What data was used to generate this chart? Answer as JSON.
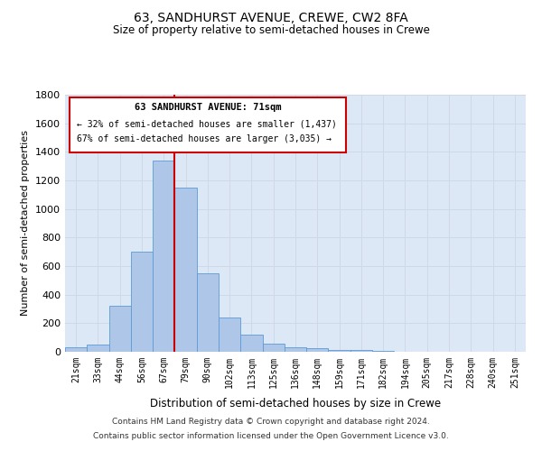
{
  "title": "63, SANDHURST AVENUE, CREWE, CW2 8FA",
  "subtitle": "Size of property relative to semi-detached houses in Crewe",
  "xlabel": "Distribution of semi-detached houses by size in Crewe",
  "ylabel": "Number of semi-detached properties",
  "categories": [
    "21sqm",
    "33sqm",
    "44sqm",
    "56sqm",
    "67sqm",
    "79sqm",
    "90sqm",
    "102sqm",
    "113sqm",
    "125sqm",
    "136sqm",
    "148sqm",
    "159sqm",
    "171sqm",
    "182sqm",
    "194sqm",
    "205sqm",
    "217sqm",
    "228sqm",
    "240sqm",
    "251sqm"
  ],
  "values": [
    30,
    50,
    320,
    700,
    1340,
    1150,
    550,
    240,
    120,
    60,
    30,
    25,
    15,
    10,
    5,
    3,
    2,
    1,
    1,
    0,
    0
  ],
  "bar_color": "#aec6e8",
  "bar_edge_color": "#5b9bd5",
  "grid_color": "#d0d8e8",
  "background_color": "#dce8f5",
  "annotation_box_color": "#ffffff",
  "annotation_border_color": "#cc0000",
  "property_line_color": "#cc0000",
  "property_bin_index": 4,
  "annotation_title": "63 SANDHURST AVENUE: 71sqm",
  "annotation_line1": "← 32% of semi-detached houses are smaller (1,437)",
  "annotation_line2": "67% of semi-detached houses are larger (3,035) →",
  "footer1": "Contains HM Land Registry data © Crown copyright and database right 2024.",
  "footer2": "Contains public sector information licensed under the Open Government Licence v3.0.",
  "ylim": [
    0,
    1800
  ],
  "yticks": [
    0,
    200,
    400,
    600,
    800,
    1000,
    1200,
    1400,
    1600,
    1800
  ]
}
